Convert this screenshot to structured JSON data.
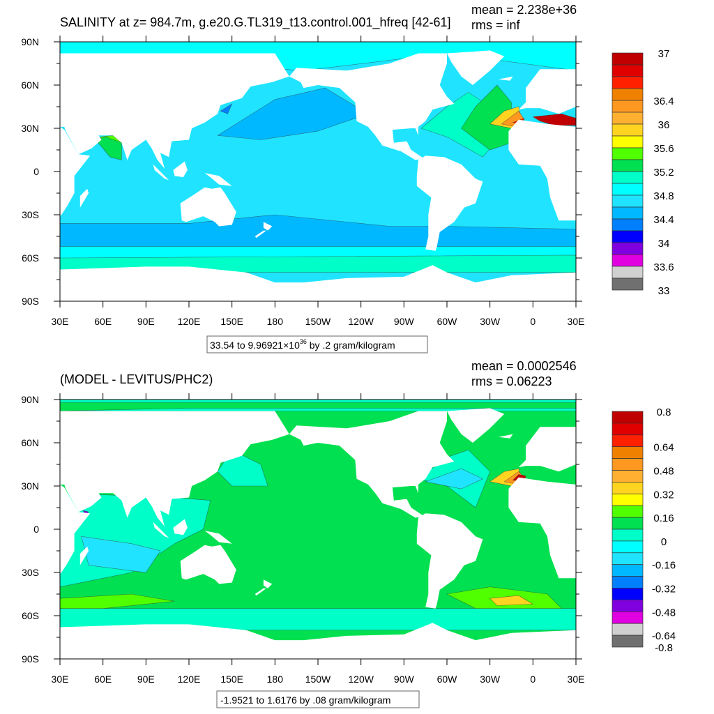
{
  "chart_data": [
    {
      "type": "heatmap",
      "subtype": "filled-contour-map",
      "title": "SALINITY at z= 984.7m, g.e20.G.TL319_t13.control.001_hfreq [42-61]",
      "stats": {
        "mean": "mean = 2.238e+36",
        "rms": "rms = inf"
      },
      "caption": "33.54 to 9.96921×10^36 by .2 gram/kilogram",
      "caption_parts": {
        "pre": "33.54 to 9.96921",
        "times": "×10",
        "exp": "36",
        "post": " by .2 gram/kilogram"
      },
      "xlim": [
        30,
        390
      ],
      "ylim": [
        -90,
        90
      ],
      "x_ticks": [
        "30E",
        "60E",
        "90E",
        "120E",
        "150E",
        "180",
        "150W",
        "120W",
        "90W",
        "60W",
        "30W",
        "0",
        "30E"
      ],
      "y_ticks": [
        "90N",
        "60N",
        "30N",
        "0",
        "30S",
        "60S",
        "90S"
      ],
      "colorbar": {
        "colors": [
          "#c00000",
          "#e00000",
          "#ff2000",
          "#f08000",
          "#ff9820",
          "#ffb030",
          "#ffd420",
          "#ffff00",
          "#50ff00",
          "#00e050",
          "#00ffc8",
          "#00ffff",
          "#20e4ff",
          "#00b8ff",
          "#0080ff",
          "#0000ff",
          "#8000e0",
          "#e000e0",
          "#d0d0d0",
          "#707070"
        ],
        "labels": [
          "37",
          "36.4",
          "36",
          "35.6",
          "35.2",
          "34.8",
          "34.4",
          "34",
          "33.6",
          "33"
        ],
        "max": 37,
        "min": 33,
        "step": 0.2
      },
      "fields": {
        "ocean_base": "#20e4ff",
        "land": "#ffffff"
      }
    },
    {
      "type": "heatmap",
      "subtype": "filled-contour-map",
      "title": "(MODEL - LEVITUS/PHC2)",
      "stats": {
        "mean": "mean = 0.0002546",
        "rms": "rms = 0.06223"
      },
      "caption": "-1.9521 to 1.6176 by .08 gram/kilogram",
      "xlim": [
        30,
        390
      ],
      "ylim": [
        -90,
        90
      ],
      "x_ticks": [
        "30E",
        "60E",
        "90E",
        "120E",
        "150E",
        "180",
        "150W",
        "120W",
        "90W",
        "60W",
        "30W",
        "0",
        "30E"
      ],
      "y_ticks": [
        "90N",
        "60N",
        "30N",
        "0",
        "30S",
        "60S",
        "90S"
      ],
      "colorbar": {
        "colors": [
          "#c00000",
          "#e00000",
          "#ff2000",
          "#f08000",
          "#ff9820",
          "#ffb030",
          "#ffd420",
          "#ffff00",
          "#50ff00",
          "#00e050",
          "#00ffc8",
          "#00ffff",
          "#20e4ff",
          "#00b8ff",
          "#0080ff",
          "#0000ff",
          "#8000e0",
          "#e000e0",
          "#d0d0d0",
          "#707070"
        ],
        "labels": [
          "0.8",
          "0.64",
          "0.48",
          "0.32",
          "0.16",
          "0",
          "-0.16",
          "-0.32",
          "-0.48",
          "-0.64",
          "-0.8"
        ],
        "max": 0.8,
        "min": -0.8,
        "step": 0.08
      },
      "fields": {
        "ocean_base": "#00e050",
        "land": "#ffffff"
      }
    }
  ]
}
